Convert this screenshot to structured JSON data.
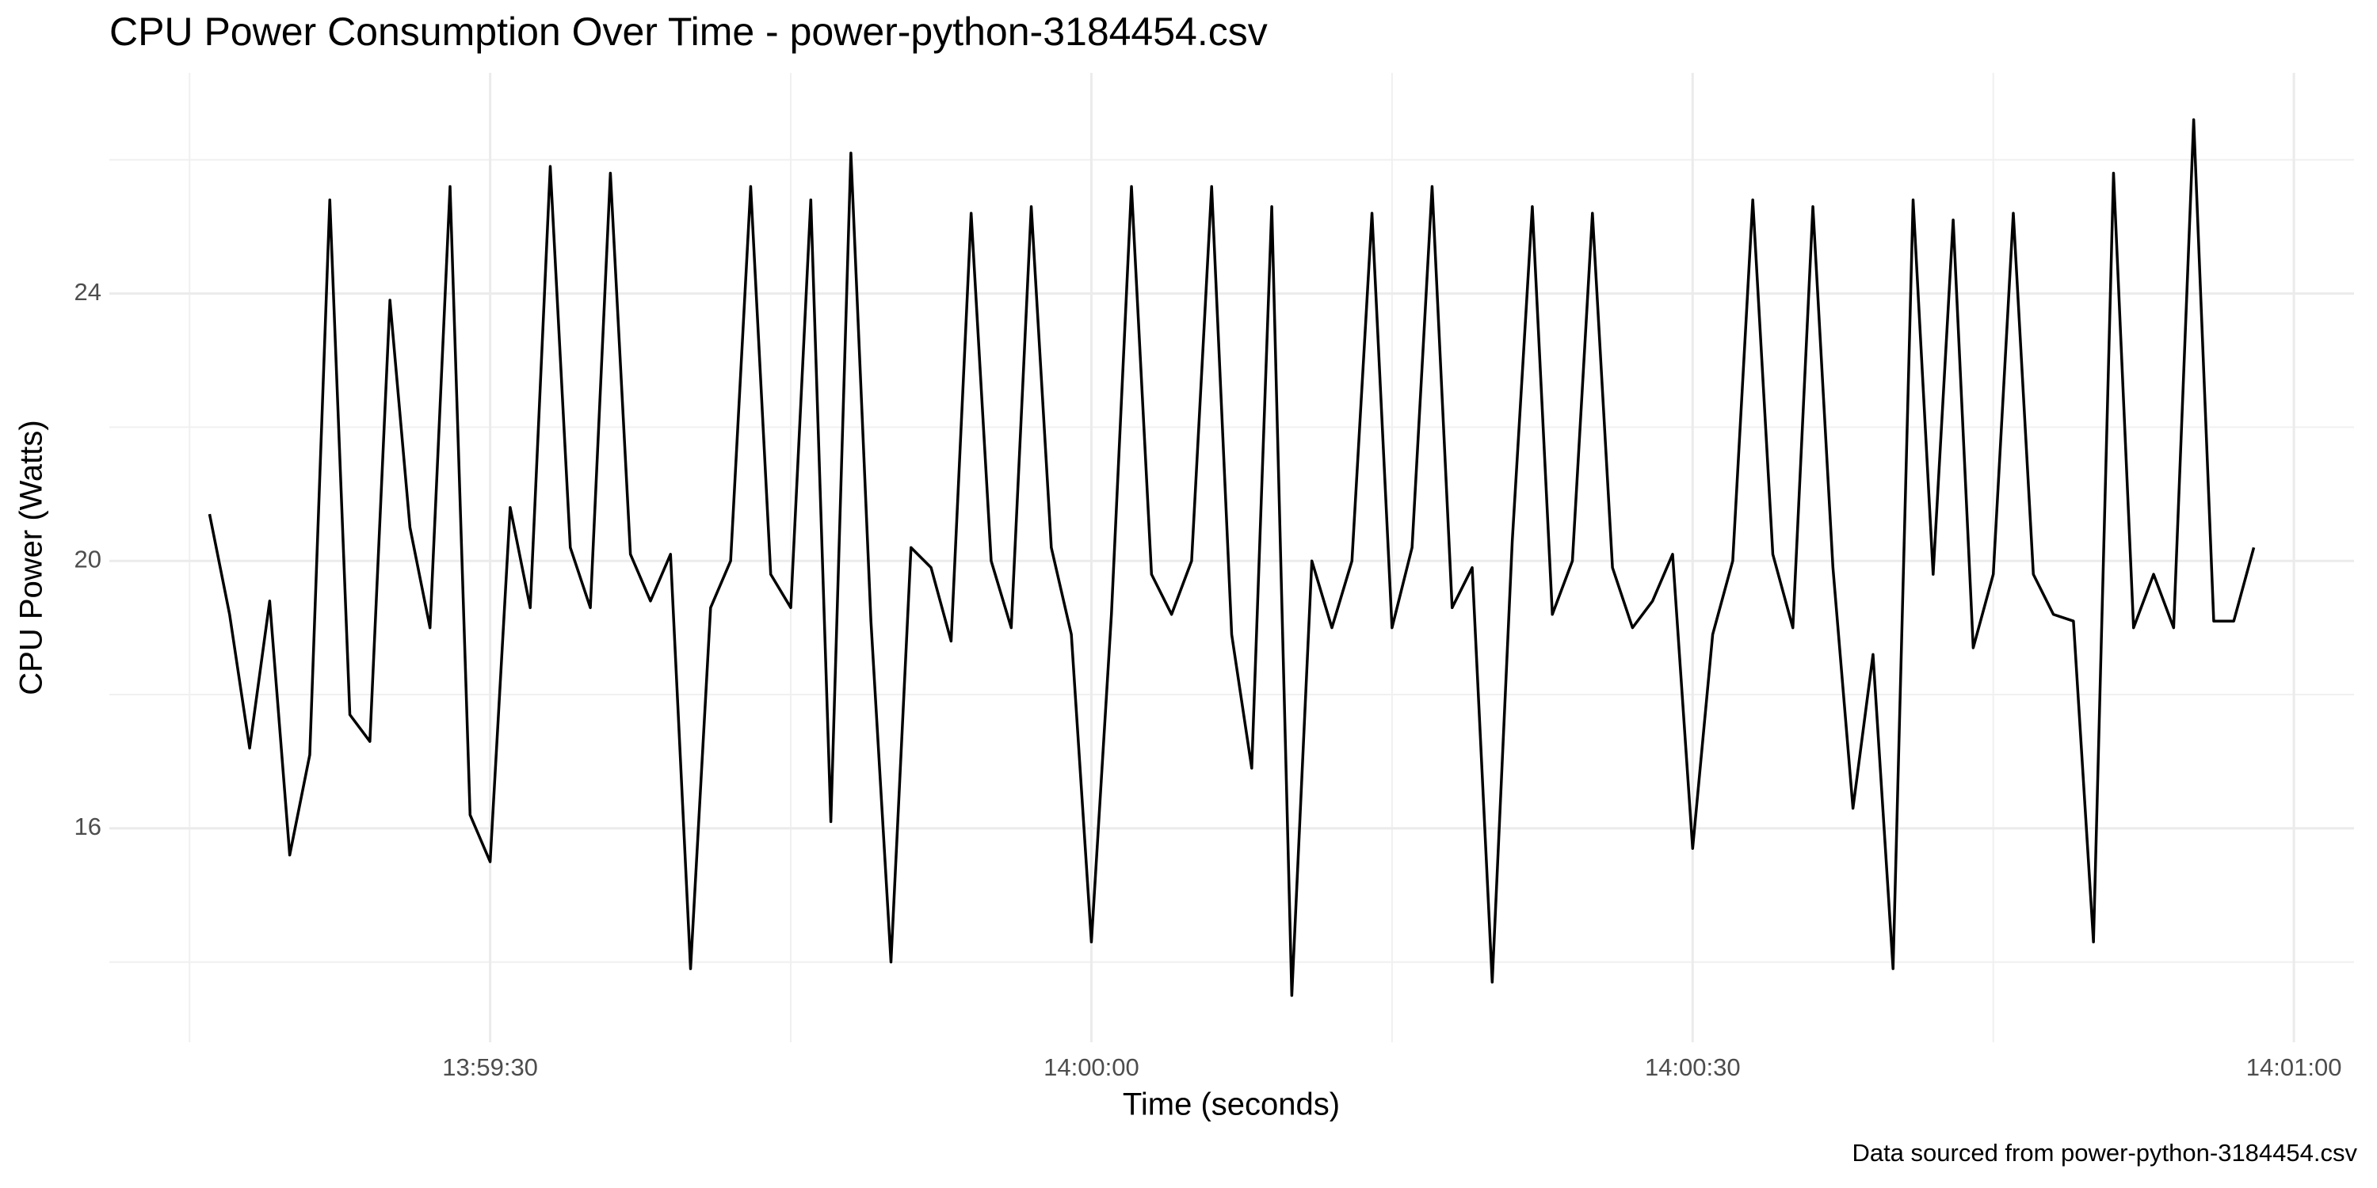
{
  "chart_data": {
    "type": "line",
    "title": "CPU Power Consumption Over Time - power-python-3184454.csv",
    "x_label": "Time (seconds)",
    "y_label": "CPU Power (Watts)",
    "caption": "Data sourced from power-python-3184454.csv",
    "x": [
      "13:59:16",
      "13:59:17",
      "13:59:18",
      "13:59:19",
      "13:59:20",
      "13:59:21",
      "13:59:22",
      "13:59:23",
      "13:59:24",
      "13:59:25",
      "13:59:26",
      "13:59:27",
      "13:59:28",
      "13:59:29",
      "13:59:30",
      "13:59:31",
      "13:59:32",
      "13:59:33",
      "13:59:34",
      "13:59:35",
      "13:59:36",
      "13:59:37",
      "13:59:38",
      "13:59:39",
      "13:59:40",
      "13:59:41",
      "13:59:42",
      "13:59:43",
      "13:59:44",
      "13:59:45",
      "13:59:46",
      "13:59:47",
      "13:59:48",
      "13:59:49",
      "13:59:50",
      "13:59:51",
      "13:59:52",
      "13:59:53",
      "13:59:54",
      "13:59:55",
      "13:59:56",
      "13:59:57",
      "13:59:58",
      "13:59:59",
      "14:00:00",
      "14:00:01",
      "14:00:02",
      "14:00:03",
      "14:00:04",
      "14:00:05",
      "14:00:06",
      "14:00:07",
      "14:00:08",
      "14:00:09",
      "14:00:10",
      "14:00:11",
      "14:00:12",
      "14:00:13",
      "14:00:14",
      "14:00:15",
      "14:00:16",
      "14:00:17",
      "14:00:18",
      "14:00:19",
      "14:00:20",
      "14:00:21",
      "14:00:22",
      "14:00:23",
      "14:00:24",
      "14:00:25",
      "14:00:26",
      "14:00:27",
      "14:00:28",
      "14:00:29",
      "14:00:30",
      "14:00:31",
      "14:00:32",
      "14:00:33",
      "14:00:34",
      "14:00:35",
      "14:00:36",
      "14:00:37",
      "14:00:38",
      "14:00:39",
      "14:00:40",
      "14:00:41",
      "14:00:42",
      "14:00:43",
      "14:00:44",
      "14:00:45",
      "14:00:46",
      "14:00:47",
      "14:00:48",
      "14:00:49",
      "14:00:50",
      "14:00:51",
      "14:00:52",
      "14:00:53",
      "14:00:54",
      "14:00:55",
      "14:00:56",
      "14:00:57",
      "14:00:58"
    ],
    "series": [
      {
        "name": "CPU Power",
        "color": "#000000",
        "values": [
          20.7,
          19.2,
          17.2,
          19.4,
          15.6,
          17.1,
          25.4,
          17.7,
          17.3,
          23.9,
          20.5,
          19.0,
          25.6,
          16.2,
          15.5,
          20.8,
          19.3,
          25.9,
          20.2,
          19.3,
          25.8,
          20.1,
          19.4,
          20.1,
          13.9,
          19.3,
          20.0,
          25.6,
          19.8,
          19.3,
          25.4,
          16.1,
          26.1,
          19.1,
          14.0,
          20.2,
          19.9,
          18.8,
          25.2,
          20.0,
          19.0,
          25.3,
          20.2,
          18.9,
          14.3,
          19.2,
          25.6,
          19.8,
          19.2,
          20.0,
          25.6,
          18.9,
          16.9,
          25.3,
          13.5,
          20.0,
          19.0,
          20.0,
          25.2,
          19.0,
          20.2,
          25.6,
          19.3,
          19.9,
          13.7,
          20.3,
          25.3,
          19.2,
          20.0,
          25.2,
          19.9,
          19.0,
          19.4,
          20.1,
          15.7,
          18.9,
          20.0,
          25.4,
          20.1,
          19.0,
          25.3,
          19.9,
          16.3,
          18.6,
          13.9,
          25.4,
          19.8,
          25.1,
          18.7,
          19.8,
          25.2,
          19.8,
          19.2,
          19.1,
          14.3,
          25.8,
          19.0,
          19.8,
          19.0,
          26.6,
          19.1,
          19.1,
          20.2
        ]
      }
    ],
    "xlim": [
      "13:59:11",
      "14:01:03"
    ],
    "xticks": [
      "13:59:30",
      "14:00:00",
      "14:00:30",
      "14:01:00"
    ],
    "ylim": [
      12.8,
      27.3
    ],
    "yticks": [
      16,
      20,
      24
    ],
    "grid": true
  }
}
